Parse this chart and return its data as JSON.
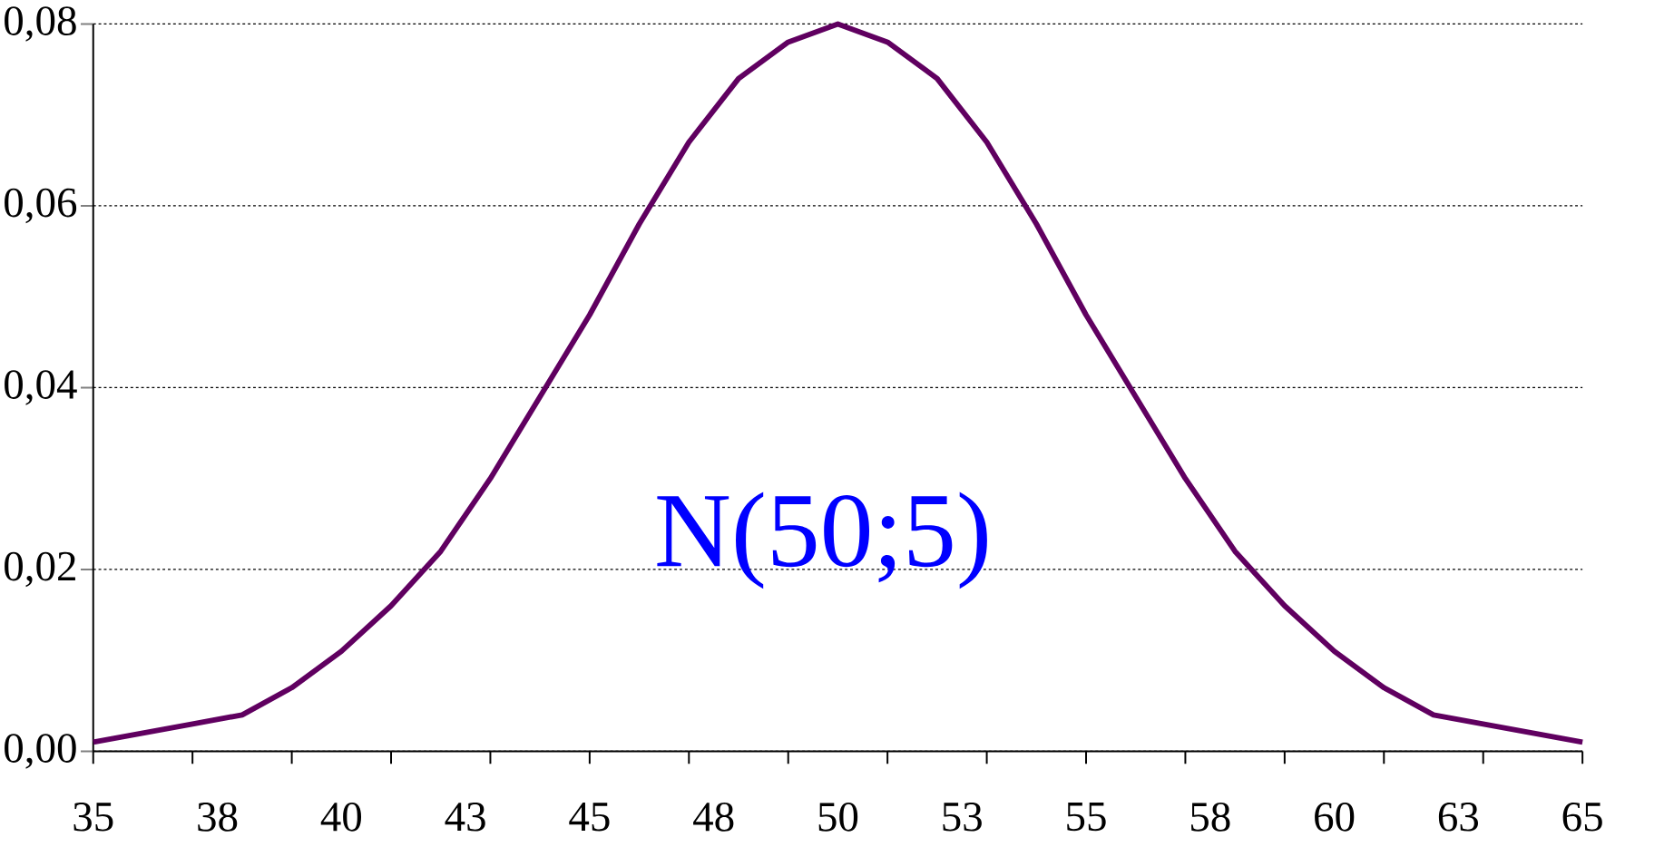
{
  "chart_data": {
    "type": "line",
    "x": [
      35,
      36,
      37,
      38,
      39,
      40,
      41,
      42,
      43,
      44,
      45,
      46,
      47,
      48,
      49,
      50,
      51,
      52,
      53,
      54,
      55,
      56,
      57,
      58,
      59,
      60,
      61,
      62,
      63,
      64,
      65
    ],
    "series": [
      {
        "color": "#600060",
        "values": [
          0.001,
          0.002,
          0.003,
          0.004,
          0.007,
          0.011,
          0.016,
          0.022,
          0.03,
          0.039,
          0.048,
          0.058,
          0.067,
          0.074,
          0.078,
          0.08,
          0.078,
          0.074,
          0.067,
          0.058,
          0.048,
          0.039,
          0.03,
          0.022,
          0.016,
          0.011,
          0.007,
          0.004,
          0.003,
          0.002,
          0.001
        ]
      }
    ],
    "xlim": [
      35,
      65
    ],
    "xticks": [
      35,
      {
        "value": 37.5,
        "label": "38"
      },
      40,
      {
        "value": 42.5,
        "label": "43"
      },
      45,
      {
        "value": 47.5,
        "label": "48"
      },
      50,
      {
        "value": 52.5,
        "label": "53"
      },
      55,
      {
        "value": 57.5,
        "label": "58"
      },
      60,
      {
        "value": 62.5,
        "label": "63"
      },
      65,
      {
        "value": 35,
        "label": null
      },
      {
        "value": 45,
        "label": null
      },
      {
        "value": 55,
        "label": null
      },
      {
        "value": 65,
        "label": null
      },
      {
        "value": 37,
        "label": null
      },
      {
        "value": 39,
        "label": null
      },
      {
        "value": 41,
        "label": null
      },
      {
        "value": 43,
        "label": null
      },
      {
        "value": 47,
        "label": null
      },
      {
        "value": 49,
        "label": null
      },
      {
        "value": 51,
        "label": null
      },
      {
        "value": 53,
        "label": null
      },
      {
        "value": 57,
        "label": null
      },
      {
        "value": 59,
        "label": null
      },
      {
        "value": 61,
        "label": null
      },
      {
        "value": 63,
        "label": null
      }
    ],
    "ylim": [
      0,
      0.08
    ],
    "yticks": [
      {
        "value": 0,
        "label": "0,00"
      },
      {
        "value": 0.02,
        "label": "0,02"
      },
      {
        "value": 0.04,
        "label": "0,04"
      },
      {
        "value": 0.06,
        "label": "0,06"
      },
      {
        "value": 0.08,
        "label": "0,08"
      }
    ],
    "grid": "y",
    "marker": "none",
    "line_style": "solid",
    "annotations": [
      "N(50;5)"
    ]
  }
}
